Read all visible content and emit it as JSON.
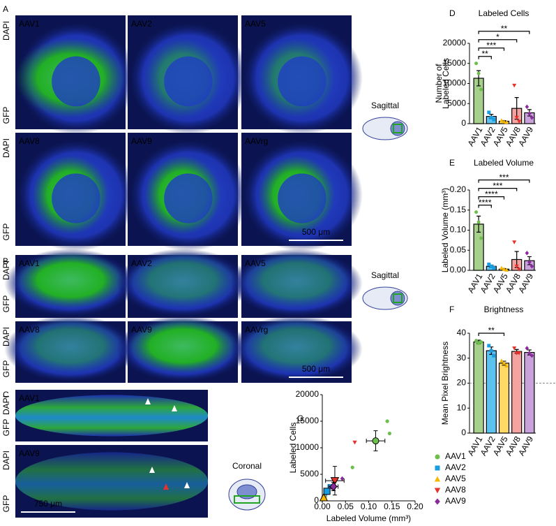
{
  "panel_A": {
    "label": "A",
    "view": "Sagittal",
    "scale_bar": "500 μm",
    "rows": [
      {
        "stains": [
          "DAPI",
          "GFP"
        ],
        "images": [
          "AAV1",
          "AAV2",
          "AAV5"
        ]
      },
      {
        "stains": [
          "DAPI",
          "GFP"
        ],
        "images": [
          "AAV8",
          "AAV9",
          "AAVrg"
        ]
      }
    ]
  },
  "panel_B": {
    "label": "B",
    "view": "Sagittal",
    "scale_bar": "500 μm",
    "rows": [
      {
        "stains": [
          "DAPI",
          "GFP"
        ],
        "images": [
          "AAV1",
          "AAV2",
          "AAV5"
        ]
      },
      {
        "stains": [
          "DAPI",
          "GFP"
        ],
        "images": [
          "AAV8",
          "AAV9",
          "AAVrg"
        ]
      }
    ]
  },
  "panel_C": {
    "label": "C",
    "view": "Coronal",
    "scale_bar": "750 μm",
    "rows": [
      {
        "stains": [
          "DAPI",
          "GFP"
        ],
        "images": [
          "AAV1"
        ]
      },
      {
        "stains": [
          "DAPI",
          "GFP"
        ],
        "images": [
          "AAV9"
        ]
      }
    ]
  },
  "chart_data": [
    {
      "type": "bar",
      "panel_label": "D",
      "title": "Labeled Cells",
      "ylabel": [
        "Number of",
        "Labeled Cells"
      ],
      "categories": [
        "AAV1",
        "AAV2",
        "AAV5",
        "AAV8",
        "AAV9"
      ],
      "values": [
        11300,
        1800,
        600,
        3800,
        2700
      ],
      "errors": [
        1900,
        500,
        150,
        2700,
        800
      ],
      "points": [
        [
          15000,
          12500,
          8500
        ],
        [
          2800,
          1500,
          1000
        ],
        [
          800,
          500,
          400
        ],
        [
          9500,
          1500,
          500
        ],
        [
          4200,
          2500,
          1500
        ]
      ],
      "colors": [
        "#a8d08d",
        "#5cc2f0",
        "#ffd966",
        "#f4a3a0",
        "#c9a2dc"
      ],
      "point_colors": [
        "#6cbf4a",
        "#1a9de0",
        "#f5b700",
        "#e8312a",
        "#8b2a9b"
      ],
      "markers": [
        "circle",
        "square",
        "triangle-up",
        "triangle-down",
        "diamond"
      ],
      "ylim": [
        0,
        20000
      ],
      "yticks": [
        0,
        5000,
        10000,
        15000,
        20000
      ],
      "brackets": [
        {
          "from": "AAV1",
          "to": "AAV2",
          "label": "**"
        },
        {
          "from": "AAV1",
          "to": "AAV5",
          "label": "***"
        },
        {
          "from": "AAV1",
          "to": "AAV8",
          "label": "*"
        },
        {
          "from": "AAV1",
          "to": "AAV9",
          "label": "**"
        }
      ]
    },
    {
      "type": "bar",
      "panel_label": "E",
      "title": "Labeled Volume",
      "ylabel": [
        "Labeled Volume (mm³)"
      ],
      "categories": [
        "AAV1",
        "AAV2",
        "AAV5",
        "AAV8",
        "AAV9"
      ],
      "values": [
        0.115,
        0.01,
        0.003,
        0.027,
        0.024
      ],
      "errors": [
        0.02,
        0.003,
        0.0015,
        0.02,
        0.01
      ],
      "points": [
        [
          0.145,
          0.12,
          0.08
        ],
        [
          0.015,
          0.01,
          0.006
        ],
        [
          0.006,
          0.003,
          0.001
        ],
        [
          0.07,
          0.01,
          0.002
        ],
        [
          0.043,
          0.02,
          0.01
        ]
      ],
      "colors": [
        "#a8d08d",
        "#5cc2f0",
        "#ffd966",
        "#f4a3a0",
        "#c9a2dc"
      ],
      "point_colors": [
        "#6cbf4a",
        "#1a9de0",
        "#f5b700",
        "#e8312a",
        "#8b2a9b"
      ],
      "markers": [
        "circle",
        "square",
        "triangle-up",
        "triangle-down",
        "diamond"
      ],
      "ylim": [
        0,
        0.2
      ],
      "yticks": [
        {
          "value": 0,
          "label": "0.00"
        },
        {
          "value": 0.05,
          "label": "0.05"
        },
        {
          "value": 0.1,
          "label": "0.10"
        },
        {
          "value": 0.15,
          "label": "0.15"
        },
        {
          "value": 0.2,
          "label": "0.20"
        }
      ],
      "brackets": [
        {
          "from": "AAV1",
          "to": "AAV2",
          "label": "****"
        },
        {
          "from": "AAV1",
          "to": "AAV5",
          "label": "****"
        },
        {
          "from": "AAV1",
          "to": "AAV8",
          "label": "***"
        },
        {
          "from": "AAV1",
          "to": "AAV9",
          "label": "***"
        }
      ]
    },
    {
      "type": "bar",
      "panel_label": "F",
      "title": "Brightness",
      "ylabel": [
        "Mean Pixel Brightness"
      ],
      "categories": [
        "AAV1",
        "AAV2",
        "AAV5",
        "AAV8",
        "AAV9"
      ],
      "values": [
        36.5,
        33,
        28,
        32.7,
        32.3
      ],
      "errors": [
        0.7,
        1.5,
        0.8,
        0.8,
        1
      ],
      "points": [
        [
          37,
          36,
          36.5
        ],
        [
          35,
          33,
          31
        ],
        [
          29,
          28,
          27
        ],
        [
          34,
          32,
          32
        ],
        [
          34,
          32,
          31
        ]
      ],
      "colors": [
        "#a8d08d",
        "#5cc2f0",
        "#ffd966",
        "#f4a3a0",
        "#c9a2dc"
      ],
      "point_colors": [
        "#6cbf4a",
        "#1a9de0",
        "#f5b700",
        "#e8312a",
        "#8b2a9b"
      ],
      "markers": [
        "circle",
        "square",
        "triangle-up",
        "triangle-down",
        "diamond"
      ],
      "ylim": [
        0,
        40
      ],
      "yticks": [
        0,
        10,
        20,
        30,
        40
      ],
      "reference_line": 20,
      "brackets": [
        {
          "from": "AAV1",
          "to": "AAV5",
          "label": "**"
        }
      ]
    },
    {
      "type": "scatter",
      "panel_label": "G",
      "xlabel": "Labeled Volume (mm³)",
      "ylabel": "Labeled Cells",
      "xlim": [
        0,
        0.2
      ],
      "xticks": [
        {
          "value": 0,
          "label": "0.00"
        },
        {
          "value": 0.05,
          "label": "0.05"
        },
        {
          "value": 0.1,
          "label": "0.10"
        },
        {
          "value": 0.15,
          "label": "0.15"
        },
        {
          "value": 0.2,
          "label": "0.20"
        }
      ],
      "ylim": [
        0,
        20000
      ],
      "yticks": [
        0,
        5000,
        10000,
        15000,
        20000
      ],
      "series": [
        {
          "name": "AAV1",
          "color": "#6cbf4a",
          "marker": "circle",
          "x": [
            0.14,
            0.145,
            0.065
          ],
          "y": [
            15000,
            12700,
            6300
          ],
          "mean_x": 0.115,
          "mean_y": 11300,
          "x_err": 0.02,
          "y_err": 1900
        },
        {
          "name": "AAV2",
          "color": "#1a9de0",
          "marker": "square",
          "x": [
            0.015,
            0.01,
            0.006
          ],
          "y": [
            2800,
            1500,
            1000
          ],
          "mean_x": 0.01,
          "mean_y": 1800,
          "x_err": 0.003,
          "y_err": 500
        },
        {
          "name": "AAV5",
          "color": "#f5b700",
          "marker": "triangle-up",
          "x": [
            0.006,
            0.003,
            0.001
          ],
          "y": [
            800,
            500,
            400
          ],
          "mean_x": 0.003,
          "mean_y": 600,
          "x_err": 0.0015,
          "y_err": 150
        },
        {
          "name": "AAV8",
          "color": "#e8312a",
          "marker": "triangle-down",
          "x": [
            0.07,
            0.01,
            0.002
          ],
          "y": [
            11000,
            1500,
            500
          ],
          "mean_x": 0.027,
          "mean_y": 3800,
          "x_err": 0.02,
          "y_err": 2700
        },
        {
          "name": "AAV9",
          "color": "#8b2a9b",
          "marker": "diamond",
          "x": [
            0.043,
            0.02,
            0.01
          ],
          "y": [
            4200,
            2500,
            1500
          ],
          "mean_x": 0.024,
          "mean_y": 2700,
          "x_err": 0.01,
          "y_err": 800
        }
      ]
    }
  ]
}
